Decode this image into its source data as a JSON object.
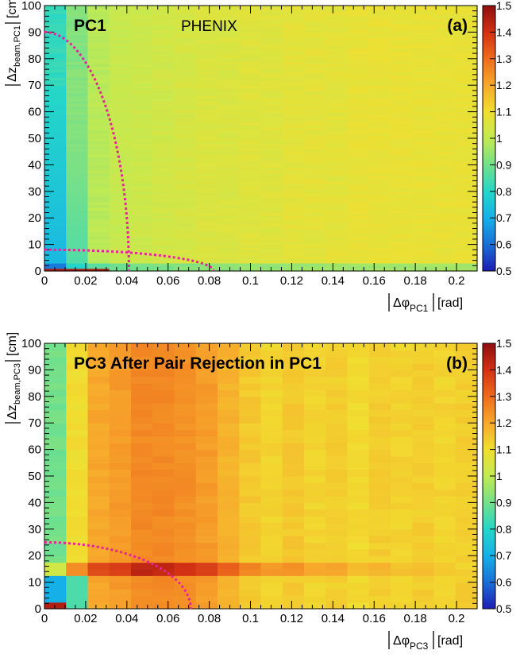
{
  "chart_data": [
    {
      "type": "heatmap",
      "panel_tag": "(a)",
      "title_bold": "PC1",
      "title_extra": "PHENIX",
      "xlabel": "|Δφ_PC1| [rad]",
      "xlabel_main": "Δφ",
      "xlabel_sub": "PC1",
      "xlabel_unit": "[rad]",
      "ylabel": "|Δz_beam,PC1| [cm]",
      "ylabel_main": "Δz",
      "ylabel_sub": "beam,PC1",
      "ylabel_unit": "[cm]",
      "xlim": [
        0,
        0.21
      ],
      "ylim": [
        0,
        100
      ],
      "xticks": [
        "0",
        "0.02",
        "0.04",
        "0.06",
        "0.08",
        "0.1",
        "0.12",
        "0.14",
        "0.16",
        "0.18",
        "0.2"
      ],
      "yticks": [
        "0",
        "10",
        "20",
        "30",
        "40",
        "50",
        "60",
        "70",
        "80",
        "90",
        "100"
      ],
      "zlim": [
        0.5,
        1.5
      ],
      "zticks": [
        "0.5",
        "0.6",
        "0.7",
        "0.8",
        "0.9",
        "1",
        "1.1",
        "1.2",
        "1.3",
        "1.4",
        "1.5"
      ],
      "x_bin_width": 0.0105,
      "y_bin_width": 1,
      "approx_ratio_by_x_bin": [
        0.82,
        0.92,
        0.99,
        1.01,
        1.02,
        1.03,
        1.04,
        1.05,
        1.05,
        1.06,
        1.06,
        1.07,
        1.07,
        1.07,
        1.08,
        1.08,
        1.08,
        1.08,
        1.08,
        1.08
      ],
      "cut_ellipses": [
        {
          "dphi_radius": 0.041,
          "dz_radius": 90,
          "style": "dotted",
          "color": "#e6249a"
        },
        {
          "dphi_radius": 0.082,
          "dz_radius": 8,
          "style": "dotted",
          "color": "#e6249a"
        }
      ],
      "grid": false
    },
    {
      "type": "heatmap",
      "panel_tag": "(b)",
      "title_bold": "PC3 After Pair Rejection in PC1",
      "title_extra": "",
      "xlabel": "|Δφ_PC3| [rad]",
      "xlabel_main": "Δφ",
      "xlabel_sub": "PC3",
      "xlabel_unit": "[rad]",
      "ylabel": "|Δz_beam,PC3| [cm]",
      "ylabel_main": "Δz",
      "ylabel_sub": "beam,PC3",
      "ylabel_unit": "[cm]",
      "xlim": [
        0,
        0.21
      ],
      "ylim": [
        0,
        100
      ],
      "xticks": [
        "0",
        "0.02",
        "0.04",
        "0.06",
        "0.08",
        "0.1",
        "0.12",
        "0.14",
        "0.16",
        "0.18",
        "0.2"
      ],
      "yticks": [
        "0",
        "10",
        "20",
        "30",
        "40",
        "50",
        "60",
        "70",
        "80",
        "90",
        "100"
      ],
      "zlim": [
        0.5,
        1.5
      ],
      "zticks": [
        "0.5",
        "0.6",
        "0.7",
        "0.8",
        "0.9",
        "1",
        "1.1",
        "1.2",
        "1.3",
        "1.4",
        "1.5"
      ],
      "x_bin_width": 0.0105,
      "y_bin_width": 2.5,
      "approx_ratio_by_x_bin": [
        0.9,
        1.1,
        1.2,
        1.22,
        1.25,
        1.25,
        1.24,
        1.22,
        1.18,
        1.14,
        1.12,
        1.14,
        1.12,
        1.13,
        1.11,
        1.13,
        1.12,
        1.13,
        1.12,
        1.13
      ],
      "cut_ellipses": [
        {
          "dphi_radius": 0.071,
          "dz_radius": 25,
          "style": "dotted",
          "color": "#e6249a"
        }
      ],
      "grid": false
    }
  ]
}
